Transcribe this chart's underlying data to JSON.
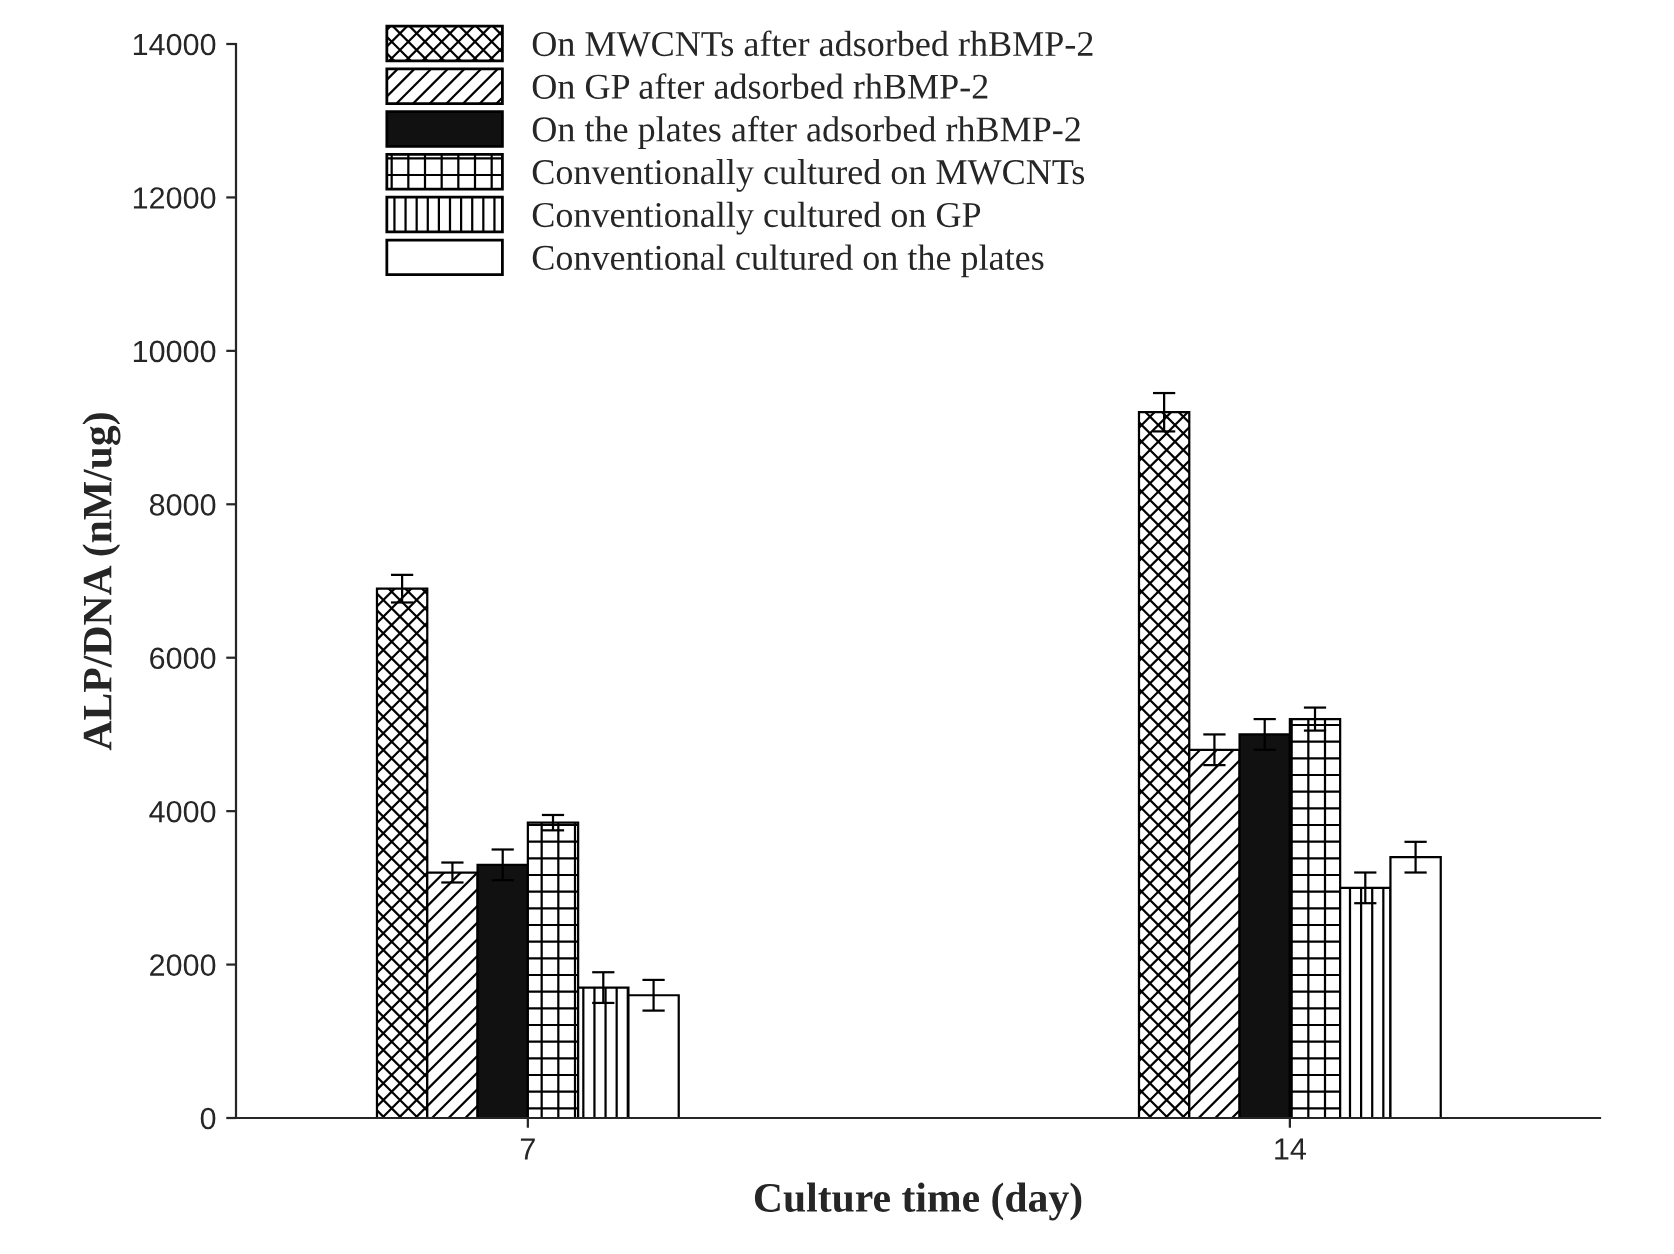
{
  "chart_data": {
    "type": "bar",
    "xlabel": "Culture time (day)",
    "ylabel": "ALP/DNA (nM/ug)",
    "categories": [
      "7",
      "14"
    ],
    "series": [
      {
        "name": "On MWCNTs after adsorbed rhBMP-2",
        "color": "#000000",
        "values": [
          6900,
          9200
        ],
        "errors": [
          180,
          250
        ]
      },
      {
        "name": "On GP after adsorbed rhBMP-2",
        "color": "#000000",
        "values": [
          3200,
          4800
        ],
        "errors": [
          130,
          200
        ]
      },
      {
        "name": "On the plates after adsorbed rhBMP-2",
        "color": "#111111",
        "values": [
          3300,
          5000
        ],
        "errors": [
          200,
          200
        ]
      },
      {
        "name": "Conventionally cultured on MWCNTs",
        "color": "#000000",
        "values": [
          3850,
          5200
        ],
        "errors": [
          100,
          150
        ]
      },
      {
        "name": "Conventionally cultured on GP",
        "color": "#000000",
        "values": [
          1700,
          3000
        ],
        "errors": [
          200,
          200
        ]
      },
      {
        "name": "Conventional cultured on the plates",
        "color": "#ffffff",
        "values": [
          1600,
          3400
        ],
        "errors": [
          200,
          200
        ]
      }
    ],
    "ylim": [
      0,
      14000
    ],
    "yticks": [
      0,
      2000,
      4000,
      6000,
      8000,
      10000,
      12000,
      14000
    ],
    "grid": false,
    "legend": "top left"
  }
}
